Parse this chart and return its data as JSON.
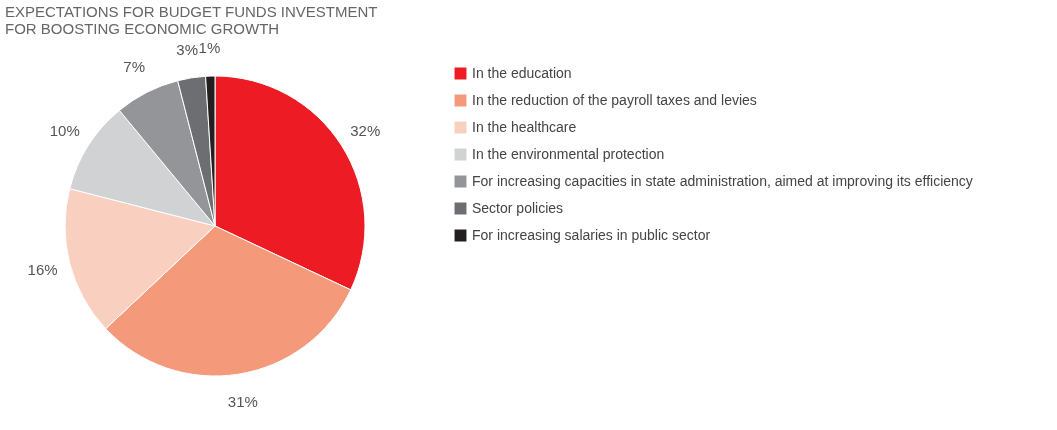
{
  "chart_data": {
    "type": "pie",
    "title": "EXPECTATIONS FOR BUDGET FUNDS INVESTMENT\nFOR BOOSTING ECONOMIC GROWTH",
    "categories": [
      "In the education",
      "In the reduction of the payroll taxes and levies",
      "In the healthcare",
      "In the environmental protection",
      "For increasing capacities in state administration, aimed at improving its efficiency",
      "Sector policies",
      "For increasing salaries in public sector"
    ],
    "values": [
      32,
      31,
      16,
      10,
      7,
      3,
      1
    ],
    "value_labels": [
      "32%",
      "31%",
      "16%",
      "10%",
      "7%",
      "3%",
      "1%"
    ],
    "colors": [
      "#ed1c24",
      "#f4997a",
      "#f9d0bf",
      "#d1d2d4",
      "#939598",
      "#6d6e71",
      "#231f20"
    ],
    "legend": "right"
  }
}
